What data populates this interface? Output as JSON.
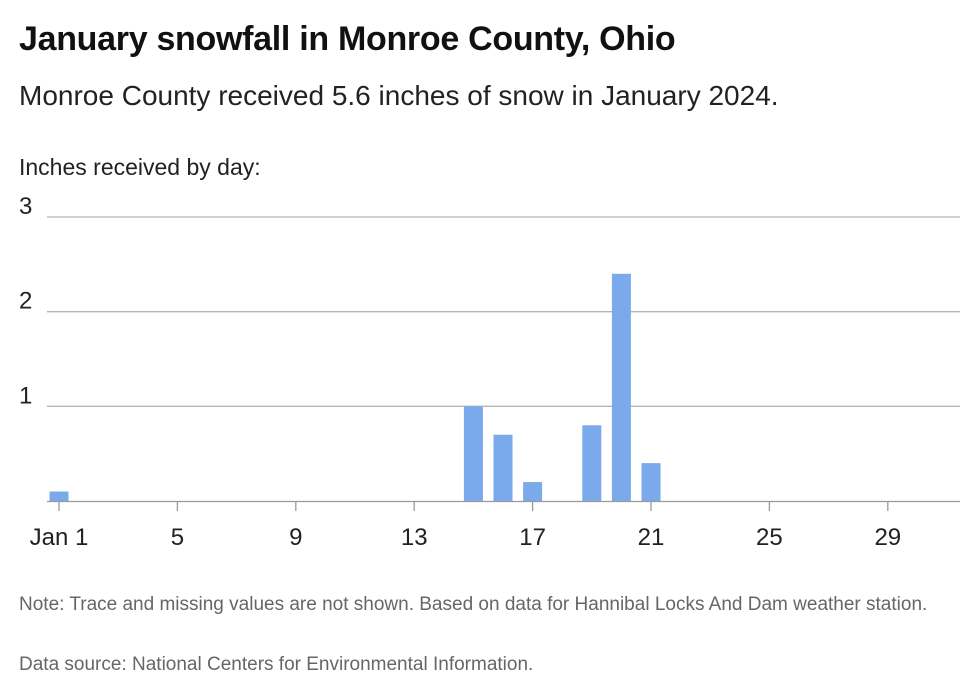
{
  "title": "January snowfall in Monroe County, Ohio",
  "subtitle": "Monroe County received 5.6 inches of snow in January 2024.",
  "y_axis_caption": "Inches received by day:",
  "note": "Note: Trace and missing values are not shown. Based on data for Hannibal Locks And Dam weather station.",
  "source": "Data source: National Centers for Environmental Information.",
  "colors": {
    "bar": "#7aaaec",
    "grid": "#b5b5b5",
    "axis": "#9a9a9a"
  },
  "chart_data": {
    "type": "bar",
    "x_unit": "day of January 2024",
    "x": [
      1,
      15,
      16,
      17,
      19,
      20,
      21
    ],
    "values": [
      0.1,
      1.0,
      0.7,
      0.2,
      0.8,
      2.4,
      0.4
    ],
    "x_range": [
      1,
      31
    ],
    "x_ticks": [
      1,
      5,
      9,
      13,
      17,
      21,
      25,
      29
    ],
    "x_tick_labels": [
      "Jan 1",
      "5",
      "9",
      "13",
      "17",
      "21",
      "25",
      "29"
    ],
    "y_ticks": [
      1,
      2,
      3
    ],
    "y_tick_labels": [
      "1",
      "2",
      "3"
    ],
    "ylim": [
      0,
      3
    ],
    "ylabel": "Inches received by day:",
    "grid": true,
    "legend": "none"
  }
}
